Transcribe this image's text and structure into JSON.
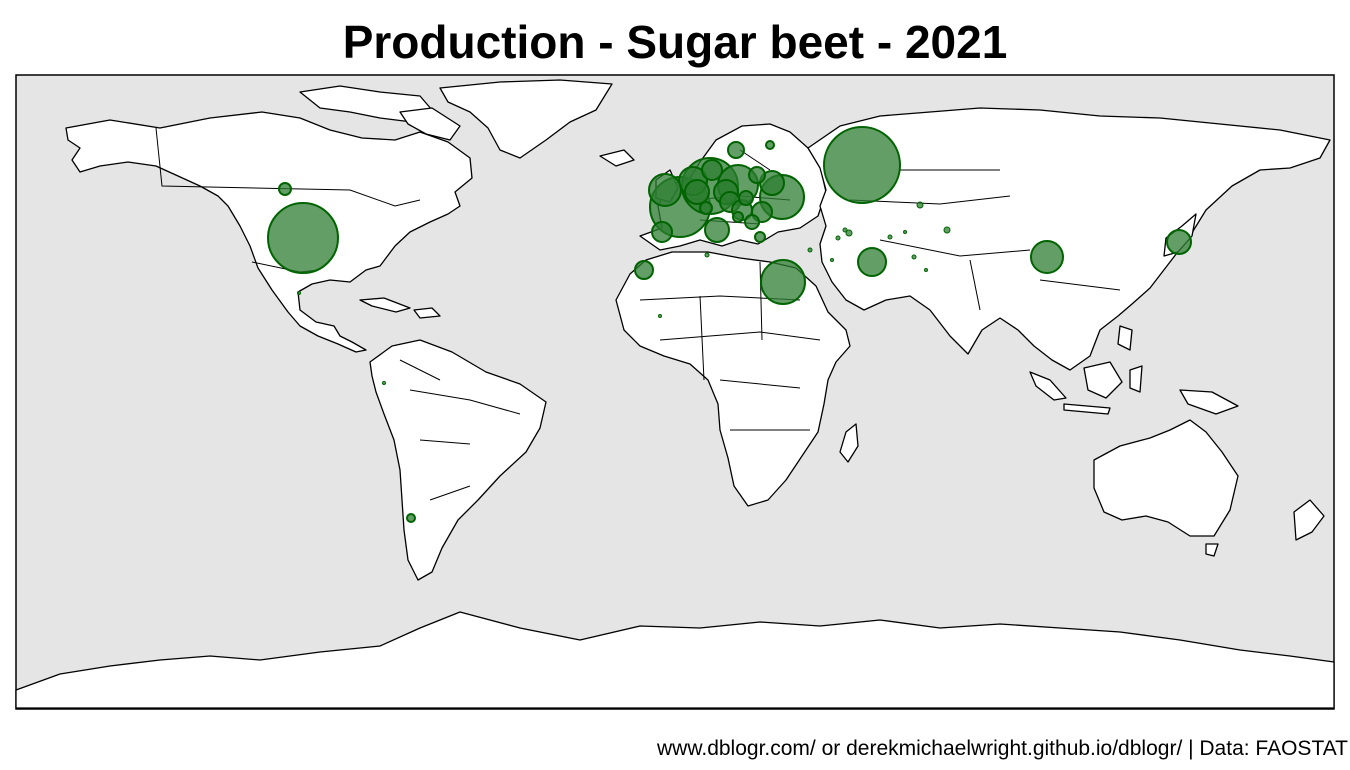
{
  "title": "Production - Sugar beet - 2021",
  "caption": "www.dblogr.com/ or derekmichaelwright.github.io/dblogr/ | Data: FAOSTAT",
  "colors": {
    "ocean": "#e5e5e5",
    "land": "#ffffff",
    "border": "#000000",
    "bubble_fill": "#2e7d32",
    "bubble_stroke": "#006400"
  }
}
